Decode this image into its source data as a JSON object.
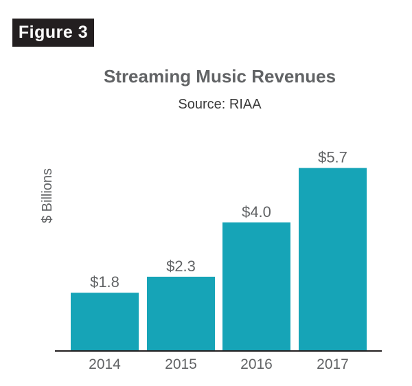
{
  "figure_label": "Figure 3",
  "colors": {
    "bar": "#16a4b7",
    "badge_bg": "#231f20",
    "text_gray": "#616365",
    "axis": "#231f20"
  },
  "chart_data": {
    "type": "bar",
    "title": "Streaming Music Revenues",
    "subtitle": "Source: RIAA",
    "xlabel": "",
    "ylabel": "$ Billions",
    "categories": [
      "2014",
      "2015",
      "2016",
      "2017"
    ],
    "values": [
      1.8,
      2.3,
      4.0,
      5.7
    ],
    "value_labels": [
      "$1.8",
      "$2.3",
      "$4.0",
      "$5.7"
    ],
    "ylim": [
      0,
      6.4
    ],
    "grid": false,
    "legend": "none"
  }
}
